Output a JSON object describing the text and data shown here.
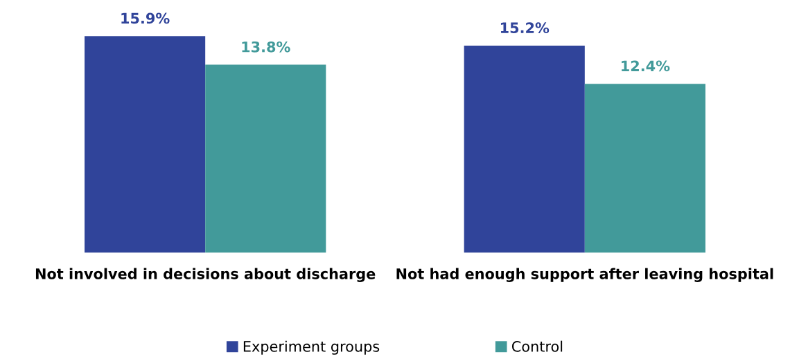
{
  "chart_data": {
    "type": "bar",
    "categories": [
      "Not involved in decisions about discharge",
      "Not had enough support after leaving hospital"
    ],
    "series": [
      {
        "name": "Experiment groups",
        "color": "#30449a",
        "values": [
          15.9,
          15.2
        ],
        "value_labels": [
          "15.9%",
          "15.2%"
        ]
      },
      {
        "name": "Control",
        "color": "#429a9a",
        "values": [
          13.8,
          12.4
        ],
        "value_labels": [
          "13.8%",
          "12.4%"
        ]
      }
    ],
    "legend": "bottom",
    "grid": false
  }
}
